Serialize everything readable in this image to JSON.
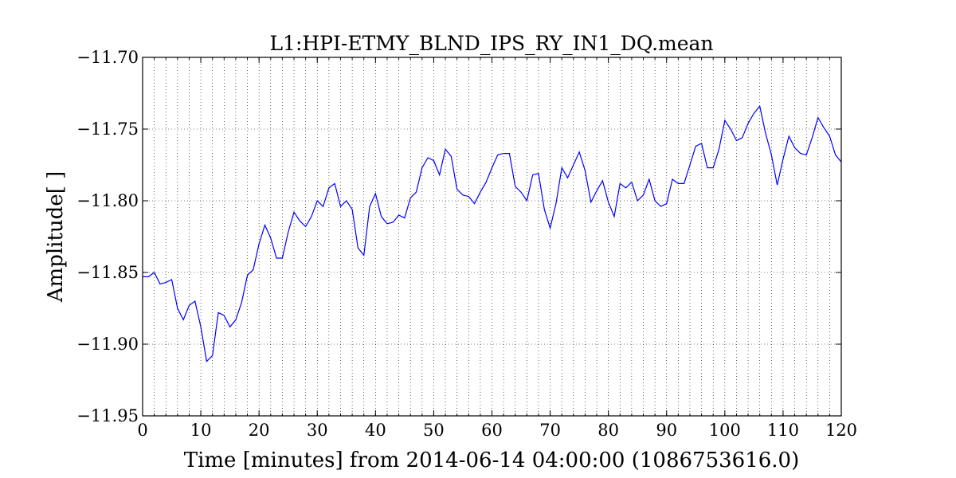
{
  "chart_data": {
    "type": "line",
    "title": "L1:HPI-ETMY_BLND_IPS_RY_IN1_DQ.mean",
    "xlabel": "Time [minutes] from 2014-06-14 04:00:00 (1086753616.0)",
    "ylabel": "Amplitude[ ]",
    "xlim": [
      0,
      120
    ],
    "ylim": [
      -11.95,
      -11.7
    ],
    "xticks": [
      0,
      10,
      20,
      30,
      40,
      50,
      60,
      70,
      80,
      90,
      100,
      110,
      120
    ],
    "xtick_labels": [
      "0",
      "10",
      "20",
      "30",
      "40",
      "50",
      "60",
      "70",
      "80",
      "90",
      "100",
      "110",
      "120"
    ],
    "yticks": [
      -11.95,
      -11.9,
      -11.85,
      -11.8,
      -11.75,
      -11.7
    ],
    "ytick_labels": [
      "−11.95",
      "−11.90",
      "−11.85",
      "−11.80",
      "−11.75",
      "−11.70"
    ],
    "grid": true,
    "minor_x_grid": true,
    "color": "#0000ff",
    "series": [
      {
        "x": [
          0,
          1,
          2,
          3,
          4,
          5,
          6,
          7,
          8,
          9,
          10,
          11,
          12,
          13,
          14,
          15,
          16,
          17,
          18,
          19,
          20,
          21,
          22,
          23,
          24,
          25,
          26,
          27,
          28,
          29,
          30,
          31,
          32,
          33,
          34,
          35,
          36,
          37,
          38,
          39,
          40,
          41,
          42,
          43,
          44,
          45,
          46,
          47,
          48,
          49,
          50,
          51,
          52,
          53,
          54,
          55,
          56,
          57,
          58,
          59,
          60,
          61,
          62,
          63,
          64,
          65,
          66,
          67,
          68,
          69,
          70,
          71,
          72,
          73,
          74,
          75,
          76,
          77,
          78,
          79,
          80,
          81,
          82,
          83,
          84,
          85,
          86,
          87,
          88,
          89,
          90,
          91,
          92,
          93,
          94,
          95,
          96,
          97,
          98,
          99,
          100,
          101,
          102,
          103,
          104,
          105,
          106,
          107,
          108,
          109,
          110,
          111,
          112,
          113,
          114,
          115,
          116,
          117,
          118,
          119,
          120
        ],
        "values": [
          -11.853,
          -11.853,
          -11.85,
          -11.858,
          -11.857,
          -11.855,
          -11.875,
          -11.883,
          -11.873,
          -11.87,
          -11.888,
          -11.912,
          -11.908,
          -11.878,
          -11.88,
          -11.888,
          -11.883,
          -11.871,
          -11.852,
          -11.848,
          -11.83,
          -11.817,
          -11.826,
          -11.84,
          -11.84,
          -11.822,
          -11.808,
          -11.814,
          -11.818,
          -11.811,
          -11.8,
          -11.804,
          -11.791,
          -11.788,
          -11.804,
          -11.8,
          -11.806,
          -11.833,
          -11.838,
          -11.804,
          -11.795,
          -11.811,
          -11.816,
          -11.815,
          -11.81,
          -11.812,
          -11.798,
          -11.794,
          -11.777,
          -11.77,
          -11.772,
          -11.782,
          -11.764,
          -11.769,
          -11.792,
          -11.796,
          -11.797,
          -11.802,
          -11.794,
          -11.787,
          -11.777,
          -11.768,
          -11.767,
          -11.767,
          -11.79,
          -11.794,
          -11.8,
          -11.782,
          -11.781,
          -11.806,
          -11.819,
          -11.802,
          -11.777,
          -11.784,
          -11.775,
          -11.766,
          -11.779,
          -11.801,
          -11.793,
          -11.786,
          -11.801,
          -11.811,
          -11.788,
          -11.791,
          -11.787,
          -11.8,
          -11.796,
          -11.785,
          -11.8,
          -11.804,
          -11.802,
          -11.785,
          -11.788,
          -11.788,
          -11.775,
          -11.762,
          -11.76,
          -11.777,
          -11.777,
          -11.764,
          -11.744,
          -11.75,
          -11.758,
          -11.756,
          -11.746,
          -11.739,
          -11.734,
          -11.753,
          -11.768,
          -11.789,
          -11.771,
          -11.755,
          -11.763,
          -11.767,
          -11.768,
          -11.756,
          -11.742,
          -11.749,
          -11.755,
          -11.768,
          -11.773
        ]
      }
    ]
  }
}
